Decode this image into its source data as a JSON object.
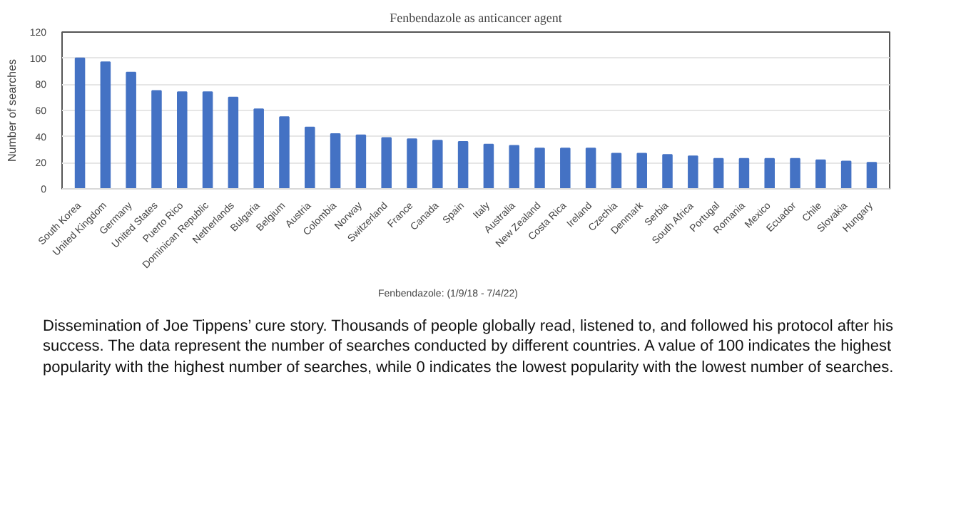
{
  "chart_data": {
    "type": "bar",
    "title": "Fenbendazole as anticancer agent",
    "ylabel": "Number of searches",
    "categories": [
      "South Korea",
      "United Kingdom",
      "Germany",
      "United States",
      "Puerto Rico",
      "Dominican Republic",
      "Netherlands",
      "Bulgaria",
      "Belgium",
      "Austria",
      "Colombia",
      "Norway",
      "Switzerland",
      "France",
      "Canada",
      "Spain",
      "Italy",
      "Australia",
      "New Zealand",
      "Costa Rica",
      "Ireland",
      "Czechia",
      "Denmark",
      "Serbia",
      "South Africa",
      "Portugal",
      "Romania",
      "Mexico",
      "Ecuador",
      "Chile",
      "Slovakia",
      "Hungary"
    ],
    "series": [
      {
        "name": "Fenbendazole: (1/9/18 - 7/4/22)",
        "color": "#4472c4",
        "values": [
          100,
          97,
          89,
          75,
          74,
          74,
          70,
          61,
          55,
          47,
          42,
          41,
          39,
          38,
          37,
          36,
          34,
          33,
          31,
          31,
          31,
          27,
          27,
          26,
          25,
          23,
          23,
          23,
          23,
          22,
          21,
          20
        ]
      }
    ],
    "ylim": [
      0,
      120
    ],
    "yticks": [
      0,
      20,
      40,
      60,
      80,
      100,
      120
    ],
    "grid": "y",
    "legend": "bottom",
    "annotations": [
      "Dissemination of Joe Tippens’ cure story. Thousands of people globally read, listened to, and followed his protocol after his success. The data represent the number of searches conducted by different countries. A value of 100 indicates the highest popularity with the highest number of searches, while 0 indicates the lowest popularity with the lowest number of searches."
    ]
  }
}
